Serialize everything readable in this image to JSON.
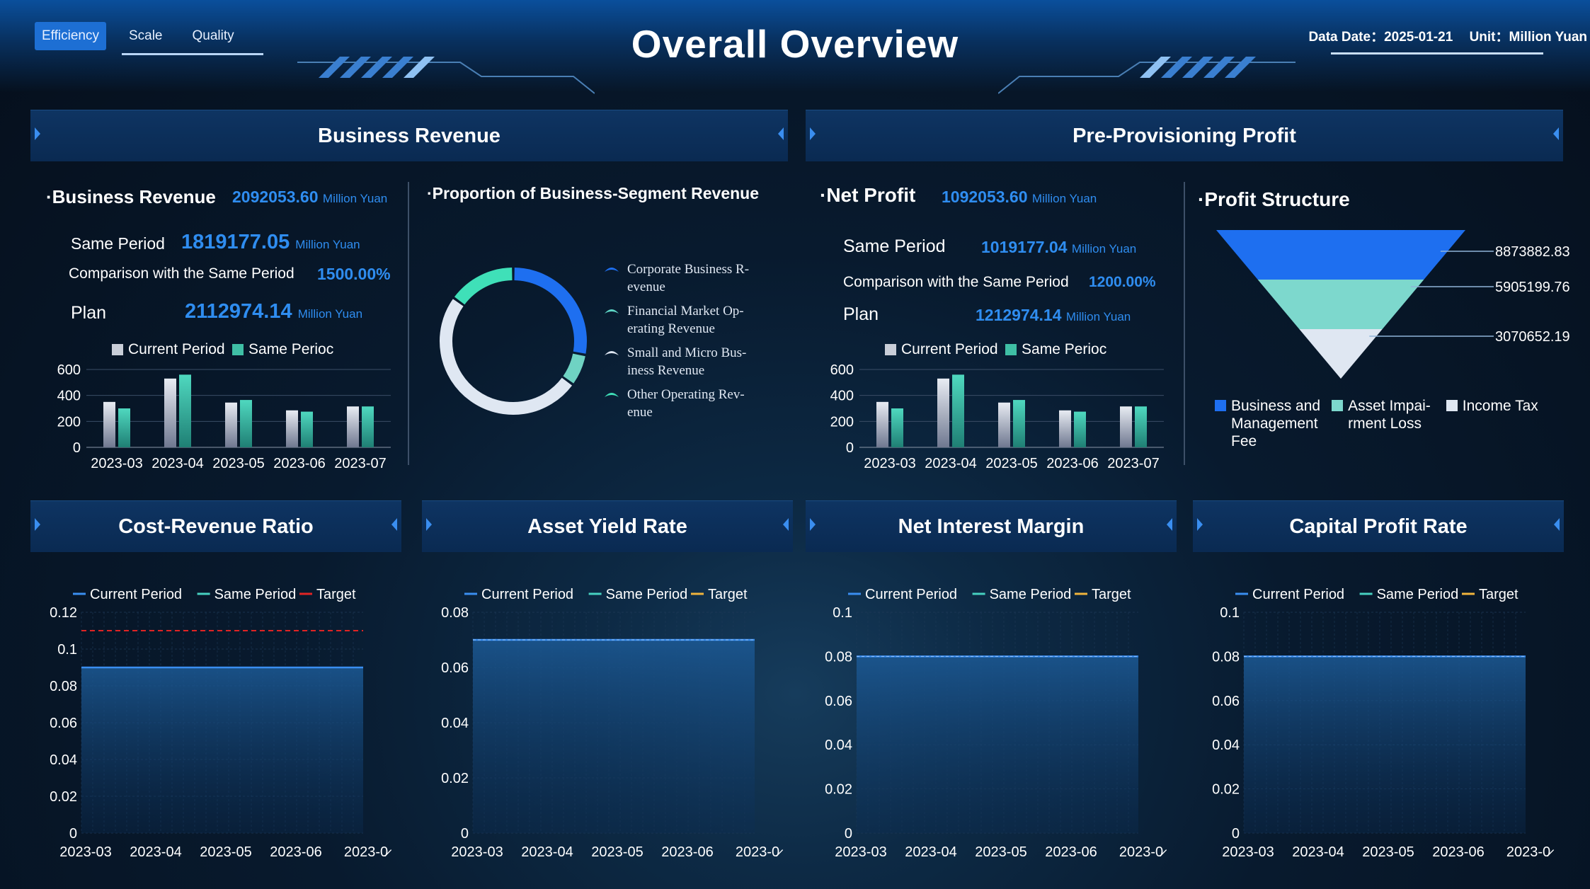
{
  "header": {
    "title": "Overall Overview",
    "tabs": [
      {
        "label": "Efficiency",
        "active": true
      },
      {
        "label": "Scale",
        "active": false
      },
      {
        "label": "Quality",
        "active": false
      }
    ],
    "data_date_label": "Data Date：2025-01-21",
    "unit_label": "Unit：Million Yuan"
  },
  "panels": {
    "business_revenue": "Business Revenue",
    "pre_provisioning_profit": "Pre-Provisioning Profit",
    "cost_revenue_ratio": "Cost-Revenue Ratio",
    "asset_yield_rate": "Asset Yield Rate",
    "net_interest_margin": "Net Interest Margin",
    "capital_profit_rate": "Capital Profit Rate"
  },
  "revenue": {
    "title": "·Business Revenue",
    "value": "2092053.60",
    "unit": "Million Yuan",
    "same_period_label": "Same Period",
    "same_period_value": "1819177.05",
    "comparison_label": "Comparison with the Same Period",
    "comparison_value": "1500.00%",
    "plan_label": "Plan",
    "plan_value": "2112974.14"
  },
  "profit": {
    "title": "·Net Profit",
    "value": "1092053.60",
    "unit": "Million Yuan",
    "same_period_label": "Same Period",
    "same_period_value": "1019177.04",
    "comparison_label": "Comparison with the Same Period",
    "comparison_value": "1200.00%",
    "plan_label": "Plan",
    "plan_value": "1212974.14"
  },
  "segment": {
    "title": "·Proportion of Business-Segment Revenue",
    "legend": [
      {
        "line1": "Corporate Business R-",
        "line2": "evenue",
        "color": "#1e6ff0"
      },
      {
        "line1": "Financial Market Op-",
        "line2": "erating Revenue",
        "color": "#5ed6c6"
      },
      {
        "line1": "Small and Micro Bus-",
        "line2": "iness Revenue",
        "color": "#dfe7f2"
      },
      {
        "line1": "Other Operating Rev-",
        "line2": "enue",
        "color": "#3fe0b8"
      }
    ]
  },
  "structure": {
    "title": "·Profit Structure",
    "labels": [
      "8873882.83",
      "5905199.76",
      "3070652.19"
    ],
    "legend": [
      {
        "line1": "Business and",
        "line2": "Management",
        "line3": "Fee",
        "color": "#1e6ff0"
      },
      {
        "line1": "Asset Impai-",
        "line2": "rment Loss",
        "line3": "",
        "color": "#7dd8cd"
      },
      {
        "line1": "Income Tax",
        "line2": "",
        "line3": "",
        "color": "#dfe7f2"
      }
    ]
  },
  "bar_legend": {
    "current": "Current Period",
    "same": "Same Perioc"
  },
  "line_legend": {
    "current": "Current Period",
    "same": "Same Period",
    "target": "Target"
  },
  "chart_data": [
    {
      "type": "bar",
      "categories": [
        "2023-03",
        "2023-04",
        "2023-05",
        "2023-06",
        "2023-07"
      ],
      "series": [
        {
          "name": "Current Period",
          "values": [
            350,
            530,
            345,
            285,
            315
          ]
        },
        {
          "name": "Same Period",
          "values": [
            300,
            560,
            365,
            275,
            315
          ]
        }
      ],
      "yticks": [
        "600",
        "400",
        "200",
        "0"
      ],
      "ylim": [
        0,
        600
      ]
    },
    {
      "type": "bar",
      "categories": [
        "2023-03",
        "2023-04",
        "2023-05",
        "2023-06",
        "2023-07"
      ],
      "series": [
        {
          "name": "Current Period",
          "values": [
            350,
            530,
            345,
            285,
            315
          ]
        },
        {
          "name": "Same Period",
          "values": [
            300,
            560,
            365,
            275,
            315
          ]
        }
      ],
      "yticks": [
        "600",
        "400",
        "200",
        "0"
      ],
      "ylim": [
        0,
        600
      ]
    },
    {
      "type": "pie",
      "labels": [
        "Corporate Business Revenue",
        "Financial Market Operating Revenue",
        "Small and Micro Business Revenue",
        "Other Operating Revenue"
      ],
      "values": [
        28,
        7,
        50,
        15
      ]
    },
    {
      "type": "funnel",
      "labels": [
        "Business and Management Fee",
        "Asset Impairment Loss",
        "Income Tax"
      ],
      "values": [
        8873882.83,
        5905199.76,
        3070652.19
      ]
    },
    {
      "type": "area",
      "title": "Cost-Revenue Ratio",
      "x": [
        "2023-03",
        "2023-04",
        "2023-05",
        "2023-06",
        "2023-0̷"
      ],
      "series": [
        {
          "name": "Current Period",
          "values": [
            0.09,
            0.09,
            0.09,
            0.09,
            0.09
          ]
        }
      ],
      "target": 0.11,
      "target_color": "#e02424",
      "yticks": [
        "0.12",
        "0.1",
        "0.08",
        "0.06",
        "0.04",
        "0.02",
        "0"
      ],
      "ylim": [
        0,
        0.12
      ]
    },
    {
      "type": "area",
      "title": "Asset Yield Rate",
      "x": [
        "2023-03",
        "2023-04",
        "2023-05",
        "2023-06",
        "2023-0̷"
      ],
      "series": [
        {
          "name": "Current Period",
          "values": [
            0.07,
            0.07,
            0.07,
            0.07,
            0.07
          ]
        }
      ],
      "target_color": "#f0b43c",
      "yticks": [
        "0.08",
        "0.06",
        "0.04",
        "0.02",
        "0"
      ],
      "ylim": [
        0,
        0.08
      ]
    },
    {
      "type": "area",
      "title": "Net Interest Margin",
      "x": [
        "2023-03",
        "2023-04",
        "2023-05",
        "2023-06",
        "2023-0̷"
      ],
      "series": [
        {
          "name": "Current Period",
          "values": [
            0.08,
            0.08,
            0.08,
            0.08,
            0.08
          ]
        }
      ],
      "target_color": "#f0b43c",
      "yticks": [
        "0.1",
        "0.08",
        "0.06",
        "0.04",
        "0.02",
        "0"
      ],
      "ylim": [
        0,
        0.1
      ]
    },
    {
      "type": "area",
      "title": "Capital Profit Rate",
      "x": [
        "2023-03",
        "2023-04",
        "2023-05",
        "2023-06",
        "2023-0̷"
      ],
      "series": [
        {
          "name": "Current Period",
          "values": [
            0.08,
            0.08,
            0.08,
            0.08,
            0.08
          ]
        }
      ],
      "target_color": "#f0b43c",
      "yticks": [
        "0.1",
        "0.08",
        "0.06",
        "0.04",
        "0.02",
        "0"
      ],
      "ylim": [
        0,
        0.1
      ]
    }
  ],
  "colors": {
    "accent": "#2f8df0",
    "bar_current": "#c9ced8",
    "bar_same": "#3fbfa5",
    "line_current": "#3a8ef0",
    "line_same": "#46d0c0"
  }
}
